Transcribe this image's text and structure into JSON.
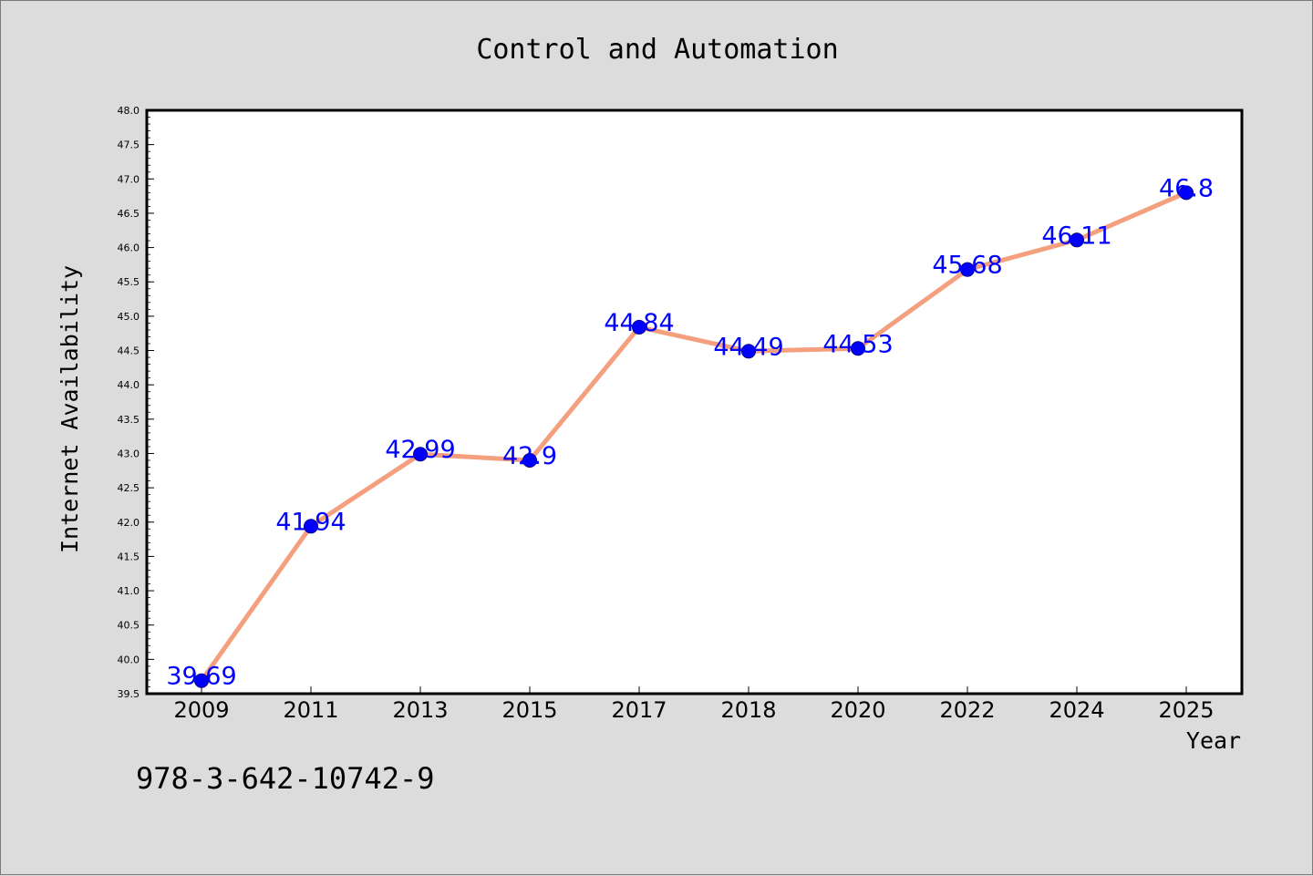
{
  "chart_data": {
    "type": "line",
    "title": "Control and Automation",
    "xlabel": "Year",
    "ylabel": "Internet Availability",
    "categories": [
      "2009",
      "2011",
      "2013",
      "2015",
      "2017",
      "2018",
      "2020",
      "2022",
      "2024",
      "2025"
    ],
    "series": [
      {
        "values": [
          39.69,
          41.94,
          42.99,
          42.9,
          44.84,
          44.49,
          44.53,
          45.68,
          46.11,
          46.8
        ],
        "labels": [
          "39.69",
          "41.94",
          "42.99",
          "42.9",
          "44.84",
          "44.49",
          "44.53",
          "45.68",
          "46.11",
          "46.8"
        ]
      }
    ],
    "ylim": [
      39.5,
      48.0
    ],
    "yticks": [
      "39.5",
      "40.0",
      "40.5",
      "41.0",
      "41.5",
      "42.0",
      "42.5",
      "43.0",
      "43.5",
      "44.0",
      "44.5",
      "45.0",
      "45.5",
      "46.0",
      "46.5",
      "47.0",
      "47.5",
      "48.0"
    ],
    "grid": false,
    "colors": {
      "line": "#f4a07e",
      "marker": "#0000ff",
      "data_label": "#0000ff",
      "background": "#dcdcdc",
      "plot_background": "#ffffff"
    }
  },
  "annotation": "978-3-642-10742-9"
}
